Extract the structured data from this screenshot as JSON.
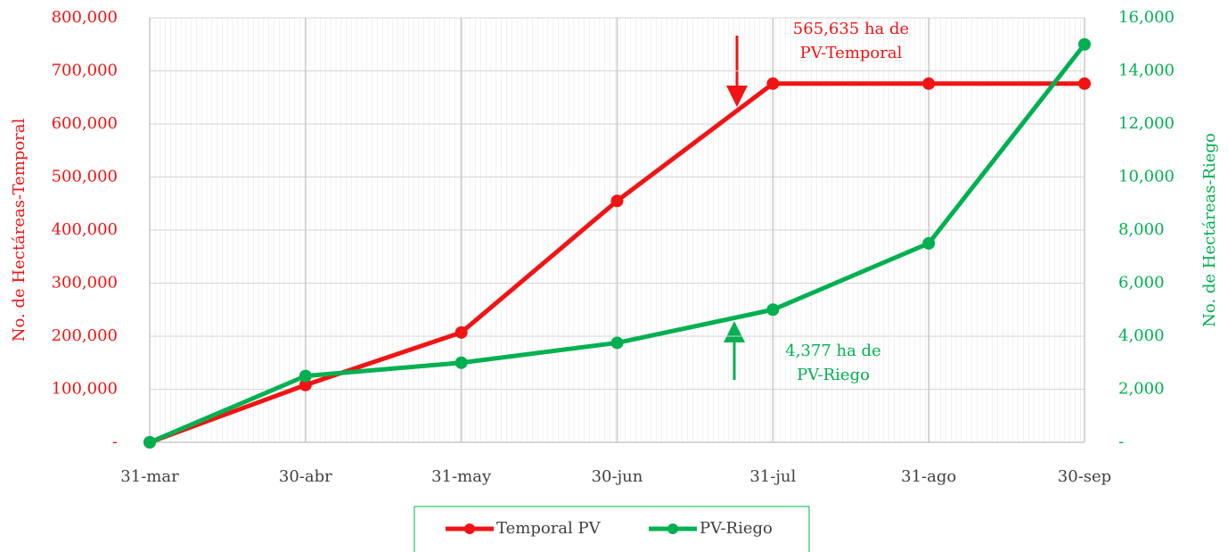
{
  "chart_data": {
    "type": "line",
    "categories": [
      "31-mar",
      "30-abr",
      "31-may",
      "30-jun",
      "31-jul",
      "31-ago",
      "30-sep"
    ],
    "series": [
      {
        "name": "Temporal PV",
        "color": "#f01414",
        "axis": "y",
        "values": [
          0,
          108000,
          207000,
          455000,
          676000,
          676000,
          676000
        ]
      },
      {
        "name": "PV-Riego",
        "color": "#00b050",
        "axis": "y2",
        "values": [
          0,
          2500,
          3000,
          3750,
          5000,
          7500,
          15000
        ]
      }
    ],
    "ylabel": "No. de Hectáreas-Temporal",
    "y2label": "No. de Hectáreas-Riego",
    "ylim": [
      0,
      800000
    ],
    "yticks": [
      {
        "value": 0,
        "label": "-"
      },
      {
        "value": 100000,
        "label": "100,000"
      },
      {
        "value": 200000,
        "label": "200,000"
      },
      {
        "value": 300000,
        "label": "300,000"
      },
      {
        "value": 400000,
        "label": "400,000"
      },
      {
        "value": 500000,
        "label": "500,000"
      },
      {
        "value": 600000,
        "label": "600,000"
      },
      {
        "value": 700000,
        "label": "700,000"
      },
      {
        "value": 800000,
        "label": "800,000"
      }
    ],
    "y2lim": [
      0,
      16000
    ],
    "y2ticks": [
      {
        "value": 0,
        "label": "-"
      },
      {
        "value": 2000,
        "label": "2,000"
      },
      {
        "value": 4000,
        "label": "4,000"
      },
      {
        "value": 6000,
        "label": "6,000"
      },
      {
        "value": 8000,
        "label": "8,000"
      },
      {
        "value": 10000,
        "label": "10,000"
      },
      {
        "value": 12000,
        "label": "12,000"
      },
      {
        "value": 14000,
        "label": "14,000"
      },
      {
        "value": 16000,
        "label": "16,000"
      }
    ],
    "grid": true,
    "legend": "bottom",
    "annotations": [
      {
        "lines": [
          "565,635 ha de",
          "PV-Temporal"
        ],
        "color": "#f01414"
      },
      {
        "lines": [
          "4,377 ha de",
          "PV-Riego"
        ],
        "color": "#00b050"
      }
    ]
  }
}
